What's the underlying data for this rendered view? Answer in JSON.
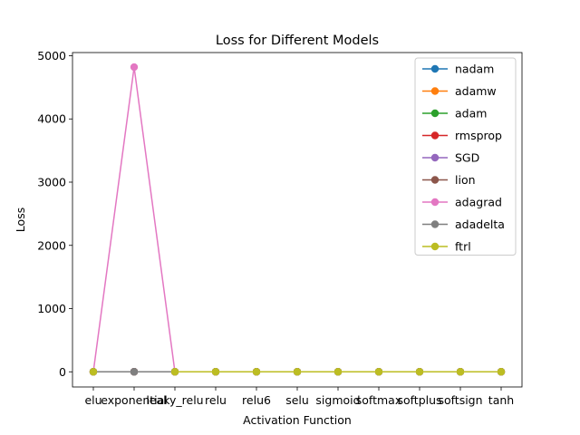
{
  "chart_data": {
    "type": "line",
    "title": "Loss for Different Models",
    "xlabel": "Activation Function",
    "ylabel": "Loss",
    "categories": [
      "elu",
      "exponential",
      "leaky_relu",
      "relu",
      "relu6",
      "selu",
      "sigmoid",
      "softmax",
      "softplus",
      "softsign",
      "tanh"
    ],
    "ylim": [
      -240,
      5050
    ],
    "yticks": [
      0,
      1000,
      2000,
      3000,
      4000,
      5000
    ],
    "legend_position": "upper right",
    "grid": false,
    "series": [
      {
        "name": "nadam",
        "color": "#1f77b4",
        "values": [
          0,
          0,
          0,
          0,
          0,
          0,
          0,
          0,
          0,
          0,
          0
        ]
      },
      {
        "name": "adamw",
        "color": "#ff7f0e",
        "values": [
          0,
          0,
          0,
          0,
          0,
          0,
          0,
          0,
          0,
          0,
          0
        ]
      },
      {
        "name": "adam",
        "color": "#2ca02c",
        "values": [
          0,
          0,
          0,
          0,
          0,
          0,
          0,
          0,
          0,
          0,
          0
        ]
      },
      {
        "name": "rmsprop",
        "color": "#d62728",
        "values": [
          0,
          0,
          0,
          0,
          0,
          0,
          0,
          0,
          0,
          0,
          0
        ]
      },
      {
        "name": "SGD",
        "color": "#9467bd",
        "values": [
          0,
          0,
          0,
          0,
          0,
          0,
          0,
          0,
          0,
          0,
          0
        ]
      },
      {
        "name": "lion",
        "color": "#8c564b",
        "values": [
          0,
          0,
          0,
          0,
          0,
          0,
          0,
          0,
          0,
          0,
          0
        ]
      },
      {
        "name": "adagrad",
        "color": "#e377c2",
        "values": [
          0,
          4820,
          0,
          0,
          0,
          0,
          0,
          0,
          0,
          0,
          0
        ]
      },
      {
        "name": "adadelta",
        "color": "#7f7f7f",
        "values": [
          0,
          0,
          0,
          0,
          0,
          0,
          0,
          0,
          0,
          0,
          0
        ]
      },
      {
        "name": "ftrl",
        "color": "#bcbd22",
        "values": [
          0,
          null,
          0,
          0,
          0,
          0,
          0,
          0,
          0,
          0,
          0
        ]
      }
    ]
  }
}
